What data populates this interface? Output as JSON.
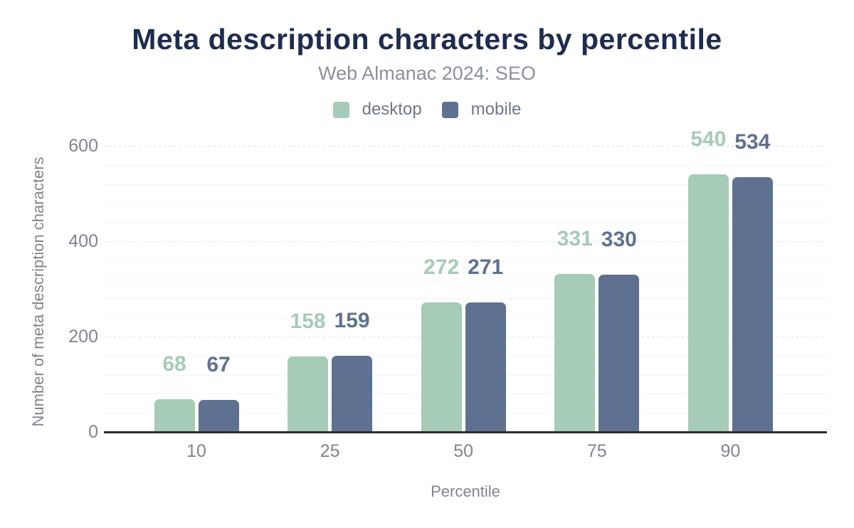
{
  "chart_data": {
    "type": "bar",
    "title": "Meta description characters by percentile",
    "subtitle": "Web Almanac 2024: SEO",
    "xlabel": "Percentile",
    "ylabel": "Number of meta description characters",
    "categories": [
      "10",
      "25",
      "50",
      "75",
      "90"
    ],
    "series": [
      {
        "name": "desktop",
        "color": "#a6cbb7",
        "values": [
          68,
          158,
          272,
          331,
          540
        ]
      },
      {
        "name": "mobile",
        "color": "#5f7190",
        "values": [
          67,
          159,
          271,
          330,
          534
        ]
      }
    ],
    "ylim": [
      0,
      600
    ],
    "yticks": [
      0,
      200,
      400,
      600
    ],
    "minor_grid_step": 40,
    "grid": true,
    "legend_position": "top"
  },
  "colors": {
    "title": "#1e2c4e",
    "subtitle": "#8b919b",
    "axis_text": "#80858d",
    "legend_text": "#6e7885",
    "axis_line": "#2b2b2b",
    "major_grid": "#e2e2e2",
    "minor_grid": "#f5f5f5",
    "background": "#ffffff"
  }
}
